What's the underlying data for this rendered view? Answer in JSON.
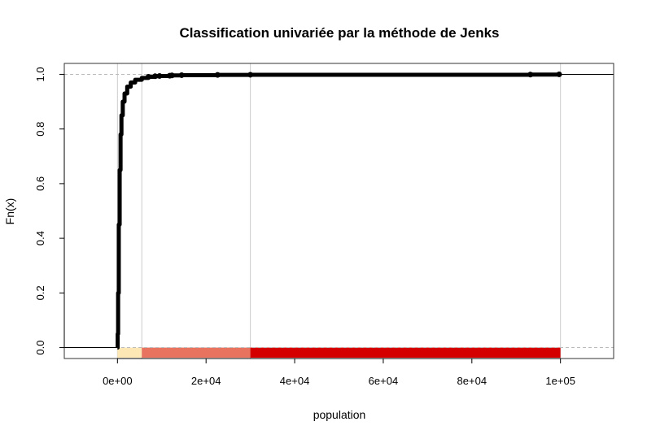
{
  "chart_data": {
    "type": "step",
    "title": "Classification univariée par la méthode de Jenks",
    "xlabel": "population",
    "ylabel": "Fn(x)",
    "xlim": [
      -12000,
      112000
    ],
    "ylim": [
      -0.04,
      1.04
    ],
    "x_ticks": [
      {
        "value": 0,
        "label": "0e+00"
      },
      {
        "value": 20000,
        "label": "2e+04"
      },
      {
        "value": 40000,
        "label": "4e+04"
      },
      {
        "value": 60000,
        "label": "6e+04"
      },
      {
        "value": 80000,
        "label": "8e+04"
      },
      {
        "value": 100000,
        "label": "1e+05"
      }
    ],
    "y_ticks": [
      {
        "value": 0.0,
        "label": "0.0"
      },
      {
        "value": 0.2,
        "label": "0.2"
      },
      {
        "value": 0.4,
        "label": "0.4"
      },
      {
        "value": 0.6,
        "label": "0.6"
      },
      {
        "value": 0.8,
        "label": "0.8"
      },
      {
        "value": 1.0,
        "label": "1.0"
      }
    ],
    "hlines_dashed": [
      0,
      1
    ],
    "class_breaks": [
      0,
      5500,
      30000,
      100000
    ],
    "class_colors": [
      "#FDE7B4",
      "#E8735F",
      "#D40000"
    ],
    "ecdf": [
      {
        "x": 0,
        "y": 0.0
      },
      {
        "x": 50,
        "y": 0.05
      },
      {
        "x": 150,
        "y": 0.2
      },
      {
        "x": 300,
        "y": 0.45
      },
      {
        "x": 500,
        "y": 0.65
      },
      {
        "x": 700,
        "y": 0.78
      },
      {
        "x": 900,
        "y": 0.85
      },
      {
        "x": 1200,
        "y": 0.9
      },
      {
        "x": 1600,
        "y": 0.93
      },
      {
        "x": 2200,
        "y": 0.955
      },
      {
        "x": 3000,
        "y": 0.97
      },
      {
        "x": 4000,
        "y": 0.98
      },
      {
        "x": 5500,
        "y": 0.987
      },
      {
        "x": 7000,
        "y": 0.991
      },
      {
        "x": 8500,
        "y": 0.993
      },
      {
        "x": 9500,
        "y": 0.994
      },
      {
        "x": 11800,
        "y": 0.995
      },
      {
        "x": 12300,
        "y": 0.996
      },
      {
        "x": 14500,
        "y": 0.997
      },
      {
        "x": 22600,
        "y": 0.998
      },
      {
        "x": 30000,
        "y": 0.9985
      },
      {
        "x": 93200,
        "y": 0.999
      },
      {
        "x": 99700,
        "y": 1.0
      }
    ]
  }
}
